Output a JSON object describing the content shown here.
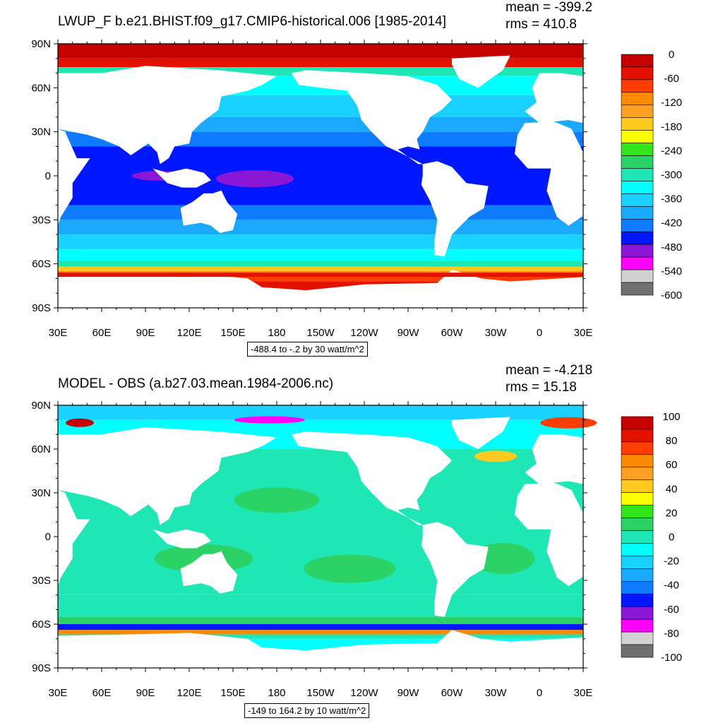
{
  "panels": [
    {
      "id": "top",
      "title": "LWUP_F b.e21.BHIST.f09_g17.CMIP6-historical.006 [1985-2014]",
      "mean_text": "mean = -399.2",
      "rms_text": "rms = 410.8",
      "range_text": "-488.4 to -.2 by 30 watt/m^2",
      "colorbar": {
        "labels": [
          "0",
          "-60",
          "-120",
          "-180",
          "-240",
          "-300",
          "-360",
          "-420",
          "-480",
          "-540",
          "-600"
        ],
        "colors": [
          "#c40000",
          "#e21100",
          "#ff3d00",
          "#ff8a00",
          "#ffa023",
          "#ffc91f",
          "#ffff00",
          "#33e619",
          "#2bd265",
          "#1ee6b4",
          "#00ffff",
          "#19d1ff",
          "#19a9ff",
          "#0f7bff",
          "#0017ff",
          "#8a17d6",
          "#ff00ff",
          "#d2d2d2",
          "#707070"
        ]
      }
    },
    {
      "id": "bottom",
      "title": "MODEL - OBS (a.b27.03.mean.1984-2006.nc)",
      "mean_text": "mean = -4.218",
      "rms_text": "rms = 15.18",
      "range_text": "-149 to 164.2 by 10 watt/m^2",
      "colorbar": {
        "labels": [
          "100",
          "80",
          "60",
          "40",
          "20",
          "0",
          "-20",
          "-40",
          "-60",
          "-80",
          "-100"
        ],
        "colors": [
          "#c40000",
          "#e21100",
          "#ff3d00",
          "#ff8a00",
          "#ffa023",
          "#ffc91f",
          "#ffff00",
          "#33e619",
          "#2bd265",
          "#1ee6b4",
          "#00ffff",
          "#19d1ff",
          "#19a9ff",
          "#0f7bff",
          "#0017ff",
          "#8a17d6",
          "#ff00ff",
          "#d2d2d2",
          "#707070"
        ]
      }
    }
  ],
  "axes": {
    "lat_labels": [
      "90N",
      "60N",
      "30N",
      "0",
      "30S",
      "60S",
      "90S"
    ],
    "lon_labels": [
      "30E",
      "60E",
      "90E",
      "120E",
      "150E",
      "180",
      "150W",
      "120W",
      "90W",
      "60W",
      "30W",
      "0",
      "30E"
    ]
  }
}
